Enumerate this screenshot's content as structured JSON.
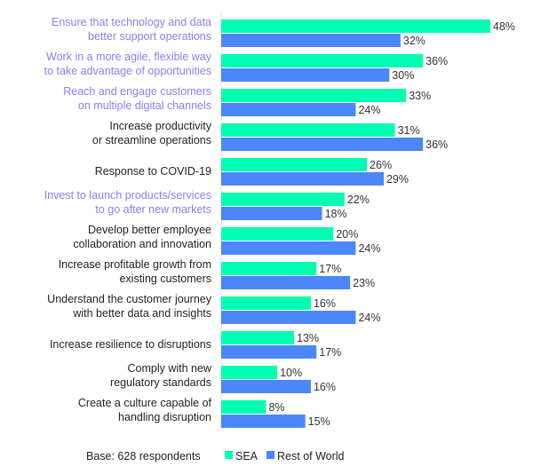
{
  "chart_data": {
    "type": "bar",
    "orientation": "horizontal",
    "categories": [
      [
        "Ensure that technology and data",
        "better support operations"
      ],
      [
        "Work in a more agile, flexible way",
        "to take advantage of opportunities"
      ],
      [
        "Reach and engage customers",
        "on multiple digital channels"
      ],
      [
        "Increase productivity",
        "or streamline operations"
      ],
      [
        "Response to COVID-19"
      ],
      [
        "Invest to launch products/services",
        "to go after new markets"
      ],
      [
        "Develop better employee",
        "collaboration and innovation"
      ],
      [
        "Increase profitable growth from",
        "existing customers"
      ],
      [
        "Understand the customer journey",
        "with better data and insights"
      ],
      [
        "Increase resilience to disruptions"
      ],
      [
        "Comply with new",
        "regulatory standards"
      ],
      [
        "Create a culture capable of",
        "handling disruption"
      ]
    ],
    "highlighted_categories": [
      0,
      1,
      2,
      5
    ],
    "series": [
      {
        "name": "SEA",
        "color": "#00FFB3",
        "values": [
          48,
          36,
          33,
          31,
          26,
          22,
          20,
          17,
          16,
          13,
          10,
          8
        ]
      },
      {
        "name": "Rest of World",
        "color": "#4B86FA",
        "values": [
          32,
          30,
          24,
          36,
          29,
          18,
          24,
          23,
          24,
          17,
          16,
          15
        ]
      }
    ],
    "value_suffix": "%",
    "xlim": [
      0,
      50
    ],
    "grid": false,
    "legend_placement": "bottom",
    "footnote": "Base: 628 respondents",
    "colors": {
      "highlight_label": "#8A7FF2",
      "label": "#222222",
      "axis": "#dddddd"
    }
  }
}
